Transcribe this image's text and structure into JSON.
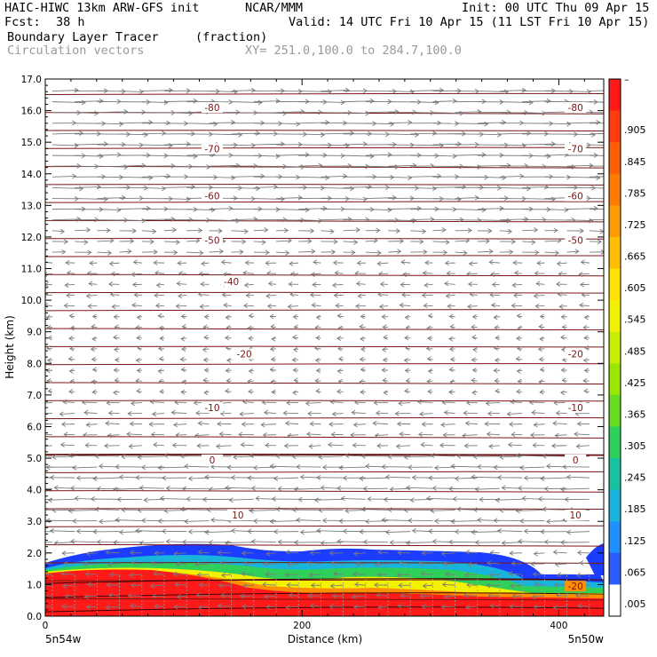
{
  "header": {
    "model_line": "HAIC-HIWC 13km ARW-GFS init",
    "org": "NCAR/MMM",
    "init": "Init: 00 UTC Thu 09 Apr 15",
    "fcst_label": "Fcst:",
    "fcst_value": "38 h",
    "valid": "Valid: 14 UTC Fri 10 Apr 15 (11 LST Fri 10 Apr 15)",
    "field_name": "Boundary Layer Tracer",
    "field_units": "(fraction)",
    "vectors_label": "Circulation vectors",
    "xy_label": "XY= 251.0,100.0 to 284.7,100.0"
  },
  "chart_data": {
    "type": "heatmap",
    "ylabel": "Height (km)",
    "xlabel": "Distance (km)",
    "ylim": [
      0.0,
      17.0
    ],
    "xlim": [
      0,
      435
    ],
    "y_ticks": [
      "0.0",
      "1.0",
      "2.0",
      "3.0",
      "4.0",
      "5.0",
      "6.0",
      "7.0",
      "8.0",
      "9.0",
      "10.0",
      "11.0",
      "12.0",
      "13.0",
      "14.0",
      "15.0",
      "16.0",
      "17.0"
    ],
    "x_ticks": [
      "0",
      "200",
      "400"
    ],
    "x_start_label": "5n54w",
    "x_end_label": "5n50w",
    "colorbar_labels": [
      "–",
      ".905",
      ".845",
      ".785",
      ".725",
      ".665",
      ".605",
      ".545",
      ".485",
      ".425",
      ".365",
      ".305",
      ".245",
      ".185",
      ".125",
      ".065",
      ".005"
    ],
    "colorbar_colors": [
      "#ff1a1a",
      "#ff3d10",
      "#ff5d08",
      "#ff7a00",
      "#ff9b00",
      "#ffbf00",
      "#ffe200",
      "#f2f200",
      "#c6ee00",
      "#99e600",
      "#66dd22",
      "#2ed05a",
      "#18c2a0",
      "#18b4dc",
      "#2090ff",
      "#2a5cff",
      "#ffffff"
    ],
    "contour_labels": [
      {
        "value": "-80",
        "km": 16.1,
        "dist": [
          130,
          413
        ]
      },
      {
        "value": "-70",
        "km": 14.8,
        "dist": [
          130,
          413
        ]
      },
      {
        "value": "-60",
        "km": 13.3,
        "dist": [
          130,
          413
        ]
      },
      {
        "value": "-50",
        "km": 11.9,
        "dist": [
          130,
          413
        ]
      },
      {
        "value": "-40",
        "km": 10.6,
        "dist": [
          145
        ]
      },
      {
        "value": "-20",
        "km": 8.3,
        "dist": [
          155,
          413
        ]
      },
      {
        "value": "-10",
        "km": 6.6,
        "dist": [
          130,
          413
        ]
      },
      {
        "value": "0",
        "km": 4.95,
        "dist": [
          130,
          413
        ]
      },
      {
        "value": "10",
        "km": 3.2,
        "dist": [
          150,
          413
        ]
      },
      {
        "value": "-20",
        "km": 0.95,
        "dist": [
          413
        ]
      }
    ]
  }
}
